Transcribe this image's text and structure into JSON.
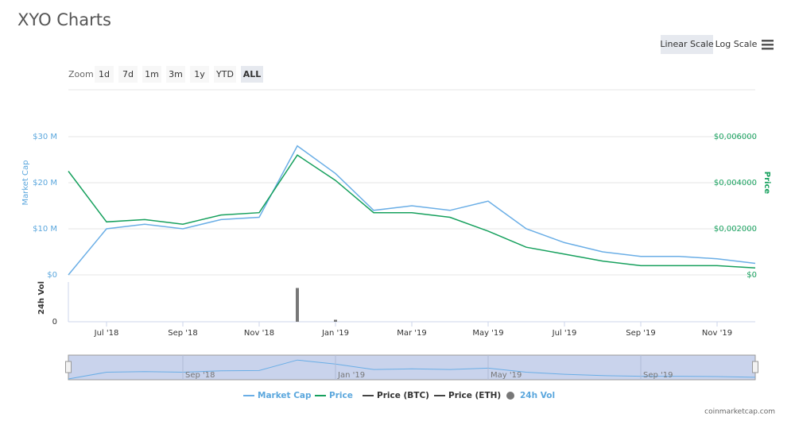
{
  "chart_data": {
    "type": "line",
    "title": "XYO Charts",
    "x": [
      "2018-06",
      "2018-07",
      "2018-08",
      "2018-09",
      "2018-10",
      "2018-11",
      "2018-12",
      "2019-01",
      "2019-02",
      "2019-03",
      "2019-04",
      "2019-05",
      "2019-06",
      "2019-07",
      "2019-08",
      "2019-09",
      "2019-10",
      "2019-11",
      "2019-12"
    ],
    "xlim": [
      "2018-06",
      "2019-12"
    ],
    "xticks": [
      {
        "value": "2018-07",
        "label": "Jul '18"
      },
      {
        "value": "2018-09",
        "label": "Sep '18"
      },
      {
        "value": "2018-11",
        "label": "Nov '18"
      },
      {
        "value": "2019-01",
        "label": "Jan '19"
      },
      {
        "value": "2019-03",
        "label": "Mar '19"
      },
      {
        "value": "2019-05",
        "label": "May '19"
      },
      {
        "value": "2019-07",
        "label": "Jul '19"
      },
      {
        "value": "2019-09",
        "label": "Sep '19"
      },
      {
        "value": "2019-11",
        "label": "Nov '19"
      }
    ],
    "ylabel": "Market Cap",
    "ylim": [
      0,
      33
    ],
    "yticks": [
      {
        "value": 0,
        "label": "$0"
      },
      {
        "value": 10,
        "label": "$10 M"
      },
      {
        "value": 20,
        "label": "$20 M"
      },
      {
        "value": 30,
        "label": "$30 M"
      }
    ],
    "y2label": "Price",
    "y2lim": [
      0,
      0.0066
    ],
    "y2ticks": [
      {
        "value": 0,
        "label": "$0"
      },
      {
        "value": 0.002,
        "label": "$0,002000"
      },
      {
        "value": 0.004,
        "label": "$0,004000"
      },
      {
        "value": 0.006,
        "label": "$0,006000"
      }
    ],
    "grid": true,
    "series": [
      {
        "name": "Market Cap",
        "color": "#6aaee6",
        "values": [
          0,
          10,
          11,
          10,
          12,
          12.5,
          28,
          22,
          14,
          15,
          14,
          16,
          10,
          7,
          5,
          4,
          4,
          3.5,
          2.5
        ]
      },
      {
        "name": "Price",
        "color": "#16a05d",
        "axis": "y2",
        "values": [
          0.0045,
          0.0023,
          0.0024,
          0.0022,
          0.0026,
          0.0027,
          0.0052,
          0.0041,
          0.0027,
          0.0027,
          0.0025,
          0.0019,
          0.0012,
          0.0009,
          0.0006,
          0.0004,
          0.0004,
          0.0004,
          0.0003
        ]
      },
      {
        "name": "24h Vol",
        "color": "#777777",
        "axis": "vol",
        "values": [
          0,
          0,
          0,
          0,
          0,
          0,
          8.5,
          0.5,
          0,
          0,
          0,
          0,
          0,
          0,
          0,
          0,
          0,
          0,
          0
        ]
      }
    ],
    "hidden_series": [
      {
        "name": "Price (BTC)",
        "color": "#444444"
      },
      {
        "name": "Price (ETH)",
        "color": "#444444"
      }
    ],
    "vol": {
      "label": "24h Vol",
      "ylim": [
        0,
        10
      ],
      "yticks": [
        0
      ]
    }
  },
  "ui": {
    "scale_buttons": [
      "Linear Scale",
      "Log Scale"
    ],
    "active_scale": 0,
    "zoom_label": "Zoom",
    "zoom_buttons": [
      "1d",
      "7d",
      "1m",
      "3m",
      "1y",
      "YTD",
      "ALL"
    ],
    "active_zoom": 6,
    "credit": "coinmarketcap.com"
  }
}
